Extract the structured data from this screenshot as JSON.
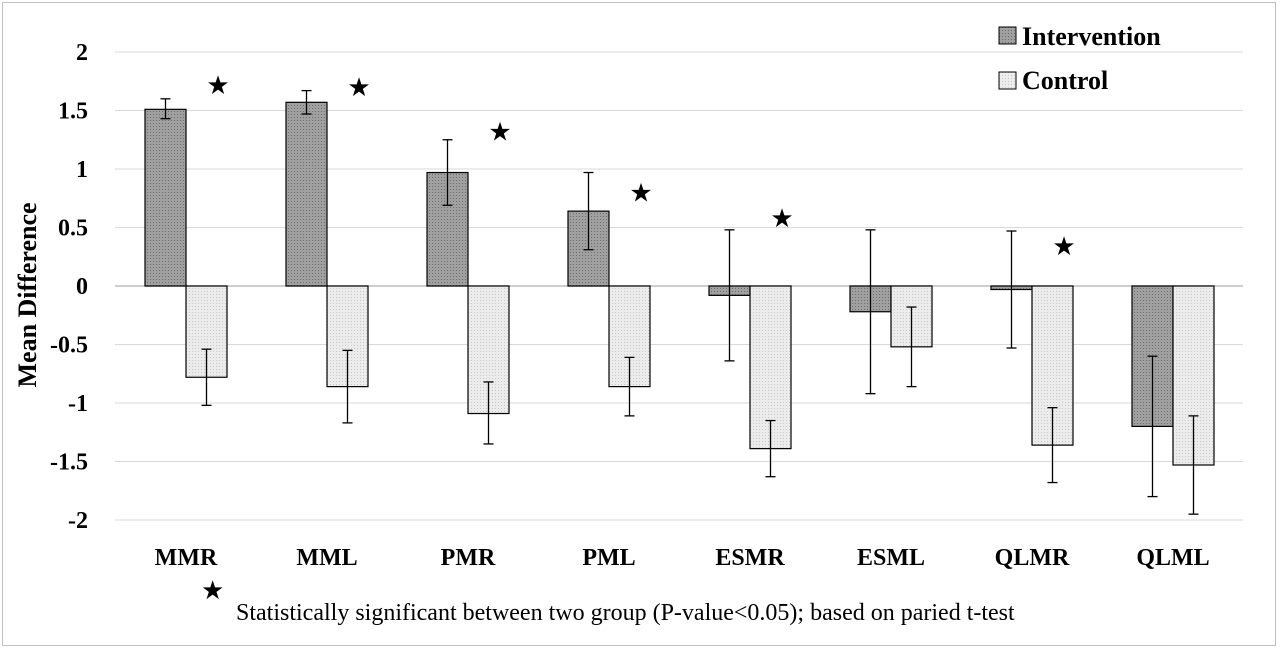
{
  "chart_data": {
    "type": "bar",
    "ylabel": "Mean Difference",
    "ylim": [
      -2,
      2
    ],
    "yticks": [
      "2",
      "1.5",
      "1",
      "0.5",
      "0",
      "-0.5",
      "-1",
      "-1.5",
      "-2"
    ],
    "ytick_values": [
      2,
      1.5,
      1,
      0.5,
      0,
      -0.5,
      -1,
      -1.5,
      -2
    ],
    "grid": true,
    "legend_position": "top-right",
    "categories": [
      "MMR",
      "MML",
      "PMR",
      "PML",
      "ESMR",
      "ESML",
      "QLMR",
      "QLML"
    ],
    "series": [
      {
        "name": "Intervention",
        "color": "#9a9a9a",
        "values": [
          1.51,
          1.57,
          0.97,
          0.64,
          -0.08,
          -0.22,
          -0.03,
          -1.2
        ],
        "error_low": [
          1.43,
          1.47,
          0.69,
          0.31,
          -0.64,
          -0.92,
          -0.53,
          -1.8
        ],
        "error_high": [
          1.6,
          1.67,
          1.25,
          0.97,
          0.48,
          0.48,
          0.47,
          -0.6
        ]
      },
      {
        "name": "Control",
        "color": "#e6e6e6",
        "values": [
          -0.78,
          -0.86,
          -1.09,
          -0.86,
          -1.39,
          -0.52,
          -1.36,
          -1.53
        ],
        "error_low": [
          -1.02,
          -1.17,
          -1.35,
          -1.11,
          -1.63,
          -0.86,
          -1.68,
          -1.95
        ],
        "error_high": [
          -0.54,
          -0.55,
          -0.82,
          -0.61,
          -1.15,
          -0.18,
          -1.04,
          -1.11
        ]
      }
    ],
    "significance_markers": [
      {
        "category": "MMR",
        "symbol": "★",
        "y": 1.72
      },
      {
        "category": "MML",
        "symbol": "★",
        "y": 1.7
      },
      {
        "category": "PMR",
        "symbol": "★",
        "y": 1.32
      },
      {
        "category": "PML",
        "symbol": "★",
        "y": 0.8
      },
      {
        "category": "ESMR",
        "symbol": "★",
        "y": 0.58
      },
      {
        "category": "QLMR",
        "symbol": "★",
        "y": 0.34
      }
    ],
    "footnote": {
      "symbol": "★",
      "text": "Statistically significant between two group (P-value<0.05); based on paried t-test"
    }
  }
}
